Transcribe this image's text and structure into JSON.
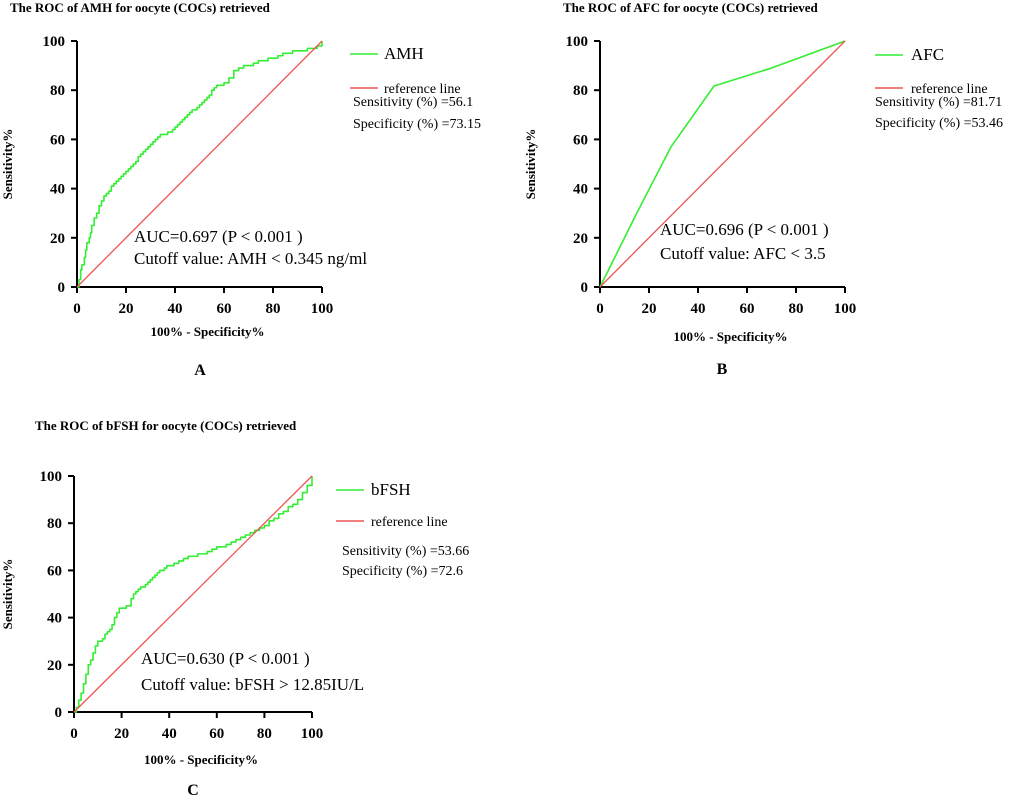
{
  "chart_data": [
    {
      "type": "line",
      "panel": "A",
      "title": "The ROC of AMH for oocyte (COCs) retrieved",
      "xlabel": "100% - Specificity%",
      "ylabel": "Sensitivity%",
      "xlim": [
        0,
        100
      ],
      "ylim": [
        0,
        100
      ],
      "xticks": [
        "0",
        "20",
        "40",
        "60",
        "80",
        "100"
      ],
      "yticks": [
        "0",
        "20",
        "40",
        "60",
        "80",
        "100"
      ],
      "series": [
        {
          "name": "AMH",
          "color": "#33ee33",
          "step": true,
          "x": [
            0,
            0.8,
            1.5,
            2,
            3,
            3.5,
            4,
            5,
            5.5,
            6,
            7,
            8,
            9,
            10,
            11,
            12,
            13,
            14,
            15,
            16,
            17,
            18,
            19,
            20,
            21,
            22,
            23,
            24,
            25,
            26,
            27,
            28,
            29,
            30,
            31,
            32,
            33,
            34,
            35,
            36,
            37,
            38,
            39,
            40,
            41,
            42,
            43,
            44,
            45,
            46,
            47,
            48,
            49,
            50,
            51,
            52,
            53,
            54,
            55,
            56,
            57,
            58,
            59,
            60,
            62,
            64,
            66,
            68,
            70,
            72,
            74,
            76,
            78,
            80,
            82,
            84,
            86,
            88,
            90,
            92,
            94,
            96,
            98,
            100
          ],
          "y": [
            0,
            3,
            7,
            9,
            12,
            15,
            18,
            20,
            22,
            25,
            28,
            30,
            33,
            35,
            37,
            38,
            39,
            41,
            42,
            43,
            44,
            45,
            46,
            47,
            48,
            49,
            50,
            51,
            53,
            54,
            55,
            56,
            57,
            58,
            59,
            60,
            61,
            62,
            62,
            62,
            63,
            63,
            64,
            65,
            66,
            67,
            68,
            69,
            70,
            71,
            72,
            72,
            73,
            74,
            75,
            76,
            77,
            78,
            80,
            81,
            82,
            82,
            82,
            83,
            85,
            88,
            89,
            90,
            90,
            91,
            92,
            92,
            93,
            93,
            94,
            95,
            95,
            96,
            96,
            96,
            97,
            97,
            98,
            100
          ]
        },
        {
          "name": "reference line",
          "color": "#ee5555",
          "x": [
            0,
            100
          ],
          "y": [
            0,
            100
          ]
        }
      ],
      "stats": [
        "Sensitivity (%) =56.1",
        "Specificity (%) =73.15"
      ],
      "annotations": [
        "AUC=0.697 (P < 0.001 )",
        "Cutoff value: AMH < 0.345 ng/ml"
      ]
    },
    {
      "type": "line",
      "panel": "B",
      "title": "The ROC of AFC for oocyte (COCs) retrieved",
      "xlabel": "100% - Specificity%",
      "ylabel": "Sensitivity%",
      "xlim": [
        0,
        100
      ],
      "ylim": [
        0,
        100
      ],
      "xticks": [
        "0",
        "20",
        "40",
        "60",
        "80",
        "100"
      ],
      "yticks": [
        "0",
        "20",
        "40",
        "60",
        "80",
        "100"
      ],
      "series": [
        {
          "name": "AFC",
          "color": "#33ee33",
          "step": false,
          "x": [
            0,
            15,
            29,
            46.54,
            70,
            100
          ],
          "y": [
            0,
            30,
            57,
            81.71,
            89,
            100
          ]
        },
        {
          "name": "reference line",
          "color": "#ee5555",
          "x": [
            0,
            100
          ],
          "y": [
            0,
            100
          ]
        }
      ],
      "stats": [
        "Sensitivity (%) =81.71",
        "Specificity (%) =53.46"
      ],
      "annotations": [
        "AUC=0.696 (P < 0.001 )",
        "Cutoff value: AFC < 3.5"
      ]
    },
    {
      "type": "line",
      "panel": "C",
      "title": "The ROC of bFSH for oocyte (COCs) retrieved",
      "xlabel": "100% - Specificity%",
      "ylabel": "Sensitivity%",
      "xlim": [
        0,
        100
      ],
      "ylim": [
        0,
        100
      ],
      "xticks": [
        "0",
        "20",
        "40",
        "60",
        "80",
        "100"
      ],
      "yticks": [
        "0",
        "20",
        "40",
        "60",
        "80",
        "100"
      ],
      "series": [
        {
          "name": "bFSH",
          "color": "#33ee33",
          "step": true,
          "x": [
            0,
            1,
            2,
            3,
            4,
            5,
            6,
            7,
            8,
            9,
            10,
            11,
            12,
            13,
            14,
            15,
            16,
            17,
            18,
            19,
            20,
            21,
            22,
            23,
            24,
            25,
            26,
            27,
            28,
            29,
            30,
            31,
            32,
            33,
            34,
            35,
            36,
            37,
            38,
            39,
            40,
            42,
            44,
            46,
            48,
            50,
            52,
            54,
            56,
            58,
            60,
            62,
            64,
            66,
            68,
            70,
            72,
            74,
            76,
            78,
            80,
            82,
            84,
            86,
            88,
            90,
            92,
            94,
            96,
            98,
            100
          ],
          "y": [
            0,
            2,
            5,
            8,
            12,
            16,
            20,
            22,
            25,
            28,
            30,
            30,
            31,
            33,
            34,
            35,
            37,
            40,
            42,
            44,
            44,
            44,
            45,
            45,
            48,
            50,
            51,
            52,
            53,
            53,
            54,
            55,
            56,
            57,
            58,
            59,
            60,
            60,
            61,
            62,
            62,
            63,
            64,
            65,
            66,
            66,
            67,
            67,
            68,
            69,
            70,
            70,
            71,
            72,
            73,
            74,
            75,
            76,
            77,
            78,
            79,
            81,
            82,
            84,
            85,
            87,
            88,
            90,
            93,
            96,
            100
          ]
        },
        {
          "name": "reference line",
          "color": "#ee5555",
          "x": [
            0,
            100
          ],
          "y": [
            0,
            100
          ]
        }
      ],
      "stats": [
        "Sensitivity (%) =53.66",
        "Specificity (%) =72.6"
      ],
      "annotations": [
        "AUC=0.630 (P < 0.001 )",
        "Cutoff value: bFSH > 12.85IU/L"
      ]
    }
  ]
}
